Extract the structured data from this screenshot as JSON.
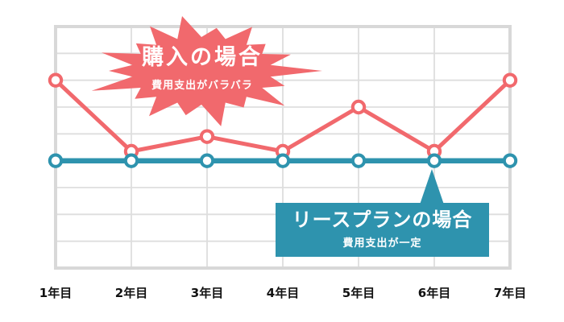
{
  "chart_data": {
    "type": "line",
    "categories": [
      "1年目",
      "2年目",
      "3年目",
      "4年目",
      "5年目",
      "6年目",
      "7年目"
    ],
    "series": [
      {
        "name": "購入の場合",
        "values": [
          7,
          4.35,
          4.9,
          4.35,
          6,
          4.35,
          7
        ],
        "color": "#f1696d",
        "line_width": 5,
        "marker": "circle-white-fill"
      },
      {
        "name": "リースプランの場合",
        "values": [
          4,
          4,
          4,
          4,
          4,
          4,
          4
        ],
        "color": "#2e93ae",
        "line_width": 6.5,
        "marker": "circle-white-fill"
      }
    ],
    "title": "",
    "xlabel": "",
    "ylabel": "",
    "ylim": [
      0,
      9
    ],
    "y_tick_labels": [],
    "grid": true,
    "legend_position": "none (labeled via on-chart callouts)"
  },
  "annotations": {
    "purchase": {
      "title": "購入の場合",
      "subtitle": "費用支出がバラバラ",
      "shape": "starburst",
      "color": "#f1696d",
      "text_color": "#ffffff"
    },
    "lease": {
      "title": "リースプランの場合",
      "subtitle": "費用支出が一定",
      "shape": "callout-box-pointing-to-year-6",
      "color": "#2e93ae",
      "text_color": "#ffffff"
    }
  },
  "colors": {
    "grid": "#dedede",
    "frame": "#d8d8d8",
    "axis_label_text": "#111111",
    "background": "#ffffff"
  }
}
